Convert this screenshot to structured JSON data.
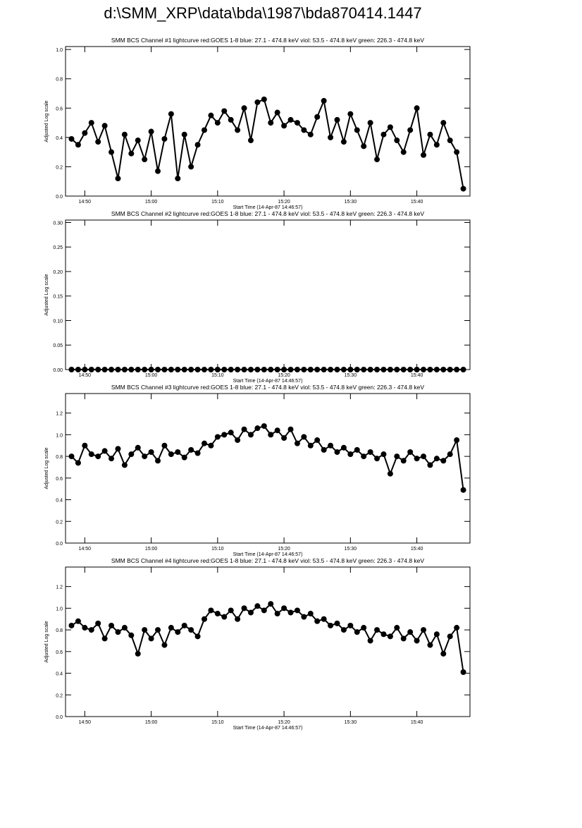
{
  "title": "d:\\SMM_XRP\\data\\bda\\1987\\bda870414.1447",
  "chart_data": [
    {
      "type": "line",
      "title": "SMM BCS Channel #1 lightcurve  red:GOES 1-8  blue: 27.1 - 474.8 keV  viol: 53.5 - 474.8 keV  green: 226.3 - 474.8 keV",
      "x_label": "Start Time (14-Apr-87 14:46:57)",
      "y_label": "Adjusted Log scale",
      "color": "#000000",
      "x": [
        48,
        49,
        50,
        51,
        52,
        53,
        54,
        55,
        56,
        57,
        58,
        59,
        60,
        61,
        62,
        63,
        64,
        65,
        66,
        67,
        68,
        69,
        70,
        71,
        72,
        73,
        74,
        75,
        76,
        77,
        78,
        79,
        80,
        81,
        82,
        83,
        84,
        85,
        86,
        87,
        88,
        89,
        90,
        91,
        92,
        93,
        94,
        95,
        96,
        97,
        98,
        99,
        100,
        101,
        102,
        103,
        104,
        105,
        106,
        107
      ],
      "values": [
        0.39,
        0.35,
        0.43,
        0.5,
        0.37,
        0.48,
        0.3,
        0.12,
        0.42,
        0.29,
        0.38,
        0.25,
        0.44,
        0.17,
        0.39,
        0.56,
        0.12,
        0.42,
        0.2,
        0.35,
        0.45,
        0.55,
        0.5,
        0.58,
        0.52,
        0.45,
        0.6,
        0.38,
        0.64,
        0.66,
        0.5,
        0.57,
        0.48,
        0.52,
        0.5,
        0.45,
        0.42,
        0.54,
        0.65,
        0.4,
        0.52,
        0.37,
        0.56,
        0.45,
        0.34,
        0.5,
        0.25,
        0.42,
        0.47,
        0.38,
        0.3,
        0.45,
        0.6,
        0.28,
        0.42,
        0.35,
        0.5,
        0.38,
        0.3,
        0.05
      ],
      "xlim": [
        47.1,
        108
      ],
      "xticks": [
        {
          "value": 50,
          "label": "14:50"
        },
        {
          "value": 60,
          "label": "15:00"
        },
        {
          "value": 70,
          "label": "15:10"
        },
        {
          "value": 80,
          "label": "15:20"
        },
        {
          "value": 90,
          "label": "15:30"
        },
        {
          "value": 100,
          "label": "15:40"
        }
      ],
      "ylim": [
        0,
        1.02
      ],
      "yticks": [
        {
          "value": 0,
          "label": "0.0"
        },
        0.2,
        0.4,
        0.6,
        0.8,
        {
          "value": 1,
          "label": "1.0"
        }
      ]
    },
    {
      "type": "line",
      "title": "SMM BCS Channel #2 lightcurve  red:GOES 1-8  blue: 27.1 - 474.8 keV  viol: 53.5 - 474.8 keV  green: 226.3 - 474.8 keV",
      "x_label": "Start Time (14-Apr-87 14:46:57)",
      "y_label": "Adjusted Log scale",
      "color": "#000000",
      "x": [
        48,
        49,
        50,
        51,
        52,
        53,
        54,
        55,
        56,
        57,
        58,
        59,
        60,
        61,
        62,
        63,
        64,
        65,
        66,
        67,
        68,
        69,
        70,
        71,
        72,
        73,
        74,
        75,
        76,
        77,
        78,
        79,
        80,
        81,
        82,
        83,
        84,
        85,
        86,
        87,
        88,
        89,
        90,
        91,
        92,
        93,
        94,
        95,
        96,
        97,
        98,
        99,
        100,
        101,
        102,
        103,
        104,
        105,
        106,
        107
      ],
      "values": [
        0,
        0,
        0,
        0,
        0,
        0,
        0,
        0,
        0,
        0,
        0,
        0,
        0,
        0,
        0,
        0,
        0,
        0,
        0,
        0,
        0,
        0,
        0,
        0,
        0,
        0,
        0,
        0,
        0,
        0,
        0,
        0,
        0,
        0,
        0,
        0,
        0,
        0,
        0,
        0,
        0,
        0,
        0,
        0,
        0,
        0,
        0,
        0,
        0,
        0,
        0,
        0,
        0,
        0,
        0,
        0,
        0,
        0,
        0,
        0
      ],
      "xlim": [
        47.1,
        108
      ],
      "xticks": [
        {
          "value": 50,
          "label": "14:50"
        },
        {
          "value": 60,
          "label": "15:00"
        },
        {
          "value": 70,
          "label": "15:10"
        },
        {
          "value": 80,
          "label": "15:20"
        },
        {
          "value": 90,
          "label": "15:30"
        },
        {
          "value": 100,
          "label": "15:40"
        }
      ],
      "ylim": [
        0,
        0.305
      ],
      "yticks": [
        {
          "value": 0,
          "label": "0.00"
        },
        0.05,
        {
          "value": 0.1,
          "label": "0.10"
        },
        0.15,
        {
          "value": 0.2,
          "label": "0.20"
        },
        0.25,
        {
          "value": 0.3,
          "label": "0.30"
        }
      ]
    },
    {
      "type": "line",
      "title": "SMM BCS Channel #3 lightcurve  red:GOES 1-8  blue: 27.1 - 474.8 keV  viol: 53.5 - 474.8 keV  green: 226.3 - 474.8 keV",
      "x_label": "Start Time (14-Apr-87 14:46:57)",
      "y_label": "Adjusted Log scale",
      "color": "#000000",
      "x": [
        48,
        49,
        50,
        51,
        52,
        53,
        54,
        55,
        56,
        57,
        58,
        59,
        60,
        61,
        62,
        63,
        64,
        65,
        66,
        67,
        68,
        69,
        70,
        71,
        72,
        73,
        74,
        75,
        76,
        77,
        78,
        79,
        80,
        81,
        82,
        83,
        84,
        85,
        86,
        87,
        88,
        89,
        90,
        91,
        92,
        93,
        94,
        95,
        96,
        97,
        98,
        99,
        100,
        101,
        102,
        103,
        104,
        105,
        106,
        107
      ],
      "values": [
        0.8,
        0.74,
        0.9,
        0.82,
        0.8,
        0.85,
        0.78,
        0.87,
        0.72,
        0.82,
        0.88,
        0.8,
        0.84,
        0.76,
        0.9,
        0.82,
        0.84,
        0.79,
        0.86,
        0.83,
        0.92,
        0.9,
        0.98,
        1.0,
        1.02,
        0.95,
        1.05,
        1.0,
        1.06,
        1.08,
        1.0,
        1.04,
        0.97,
        1.05,
        0.92,
        0.98,
        0.9,
        0.95,
        0.86,
        0.9,
        0.84,
        0.88,
        0.82,
        0.86,
        0.8,
        0.84,
        0.78,
        0.82,
        0.64,
        0.8,
        0.76,
        0.84,
        0.78,
        0.8,
        0.72,
        0.78,
        0.76,
        0.82,
        0.95,
        0.49
      ],
      "xlim": [
        47.1,
        108
      ],
      "xticks": [
        {
          "value": 50,
          "label": "14:50"
        },
        {
          "value": 60,
          "label": "15:00"
        },
        {
          "value": 70,
          "label": "15:10"
        },
        {
          "value": 80,
          "label": "15:20"
        },
        {
          "value": 90,
          "label": "15:30"
        },
        {
          "value": 100,
          "label": "15:40"
        }
      ],
      "ylim": [
        0,
        1.38
      ],
      "yticks": [
        {
          "value": 0,
          "label": "0.0"
        },
        0.2,
        0.4,
        0.6,
        0.8,
        {
          "value": 1,
          "label": "1.0"
        },
        1.2
      ]
    },
    {
      "type": "line",
      "title": "SMM BCS Channel #4 lightcurve  red:GOES 1-8  blue: 27.1 - 474.8 keV  viol: 53.5 - 474.8 keV  green: 226.3 - 474.8 keV",
      "x_label": "Start Time (14-Apr-87 14:46:57)",
      "y_label": "Adjusted Log scale",
      "color": "#000000",
      "x": [
        48,
        49,
        50,
        51,
        52,
        53,
        54,
        55,
        56,
        57,
        58,
        59,
        60,
        61,
        62,
        63,
        64,
        65,
        66,
        67,
        68,
        69,
        70,
        71,
        72,
        73,
        74,
        75,
        76,
        77,
        78,
        79,
        80,
        81,
        82,
        83,
        84,
        85,
        86,
        87,
        88,
        89,
        90,
        91,
        92,
        93,
        94,
        95,
        96,
        97,
        98,
        99,
        100,
        101,
        102,
        103,
        104,
        105,
        106,
        107
      ],
      "values": [
        0.84,
        0.88,
        0.82,
        0.8,
        0.86,
        0.72,
        0.84,
        0.78,
        0.82,
        0.75,
        0.58,
        0.8,
        0.72,
        0.8,
        0.66,
        0.82,
        0.78,
        0.84,
        0.8,
        0.74,
        0.9,
        0.98,
        0.95,
        0.92,
        0.98,
        0.9,
        1.0,
        0.96,
        1.02,
        0.98,
        1.04,
        0.95,
        1.0,
        0.96,
        0.98,
        0.92,
        0.95,
        0.88,
        0.9,
        0.84,
        0.86,
        0.8,
        0.84,
        0.78,
        0.82,
        0.7,
        0.8,
        0.76,
        0.74,
        0.82,
        0.72,
        0.78,
        0.7,
        0.8,
        0.66,
        0.76,
        0.58,
        0.74,
        0.82,
        0.41
      ],
      "xlim": [
        47.1,
        108
      ],
      "xticks": [
        {
          "value": 50,
          "label": "14:50"
        },
        {
          "value": 60,
          "label": "15:00"
        },
        {
          "value": 70,
          "label": "15:10"
        },
        {
          "value": 80,
          "label": "15:20"
        },
        {
          "value": 90,
          "label": "15:30"
        },
        {
          "value": 100,
          "label": "15:40"
        }
      ],
      "ylim": [
        0,
        1.38
      ],
      "yticks": [
        {
          "value": 0,
          "label": "0.0"
        },
        0.2,
        0.4,
        0.6,
        0.8,
        {
          "value": 1,
          "label": "1.0"
        },
        1.2
      ]
    }
  ]
}
